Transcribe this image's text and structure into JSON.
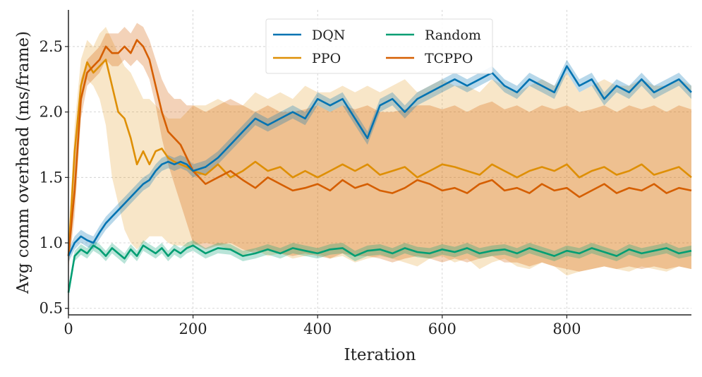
{
  "chart_data": {
    "type": "line",
    "title": "",
    "xlabel": "Iteration",
    "ylabel": "Avg comm overhead (ms/frame)",
    "xlim": [
      0,
      1000
    ],
    "ylim": [
      0.45,
      2.78
    ],
    "xticks": [
      0,
      200,
      400,
      600,
      800
    ],
    "xtick_labels": [
      "0",
      "200",
      "400",
      "600",
      "800"
    ],
    "yticks": [
      0.5,
      1.0,
      1.5,
      2.0,
      2.5
    ],
    "ytick_labels": [
      "0.5",
      "1.0",
      "1.5",
      "2.0",
      "2.5"
    ],
    "grid": true,
    "legend_position": "top-center",
    "legend_columns": 2,
    "x": [
      0,
      10,
      20,
      30,
      40,
      50,
      60,
      70,
      80,
      90,
      100,
      110,
      120,
      130,
      140,
      150,
      160,
      170,
      180,
      190,
      200,
      220,
      240,
      260,
      280,
      300,
      320,
      340,
      360,
      380,
      400,
      420,
      440,
      460,
      480,
      500,
      520,
      540,
      560,
      580,
      600,
      620,
      640,
      660,
      680,
      700,
      720,
      740,
      760,
      780,
      800,
      820,
      840,
      860,
      880,
      900,
      920,
      940,
      960,
      980,
      1000
    ],
    "series": [
      {
        "name": "DQN",
        "color": "#0173b2",
        "values": [
          0.9,
          1.0,
          1.05,
          1.02,
          1.0,
          1.08,
          1.15,
          1.2,
          1.25,
          1.3,
          1.35,
          1.4,
          1.45,
          1.48,
          1.55,
          1.6,
          1.62,
          1.6,
          1.62,
          1.6,
          1.55,
          1.58,
          1.65,
          1.75,
          1.85,
          1.95,
          1.9,
          1.95,
          2.0,
          1.95,
          2.1,
          2.05,
          2.1,
          1.95,
          1.8,
          2.05,
          2.1,
          2.0,
          2.1,
          2.15,
          2.2,
          2.25,
          2.2,
          2.25,
          2.3,
          2.2,
          2.15,
          2.25,
          2.2,
          2.15,
          2.35,
          2.2,
          2.25,
          2.1,
          2.2,
          2.15,
          2.25,
          2.15,
          2.2,
          2.25,
          2.15
        ],
        "band_low": [
          0.85,
          0.95,
          1.0,
          0.97,
          0.95,
          1.03,
          1.1,
          1.15,
          1.2,
          1.25,
          1.3,
          1.35,
          1.4,
          1.43,
          1.5,
          1.55,
          1.57,
          1.55,
          1.57,
          1.55,
          1.5,
          1.53,
          1.6,
          1.7,
          1.8,
          1.9,
          1.85,
          1.9,
          1.95,
          1.9,
          2.05,
          2.0,
          2.05,
          1.9,
          1.75,
          2.0,
          2.05,
          1.95,
          2.05,
          2.1,
          2.15,
          2.2,
          2.15,
          2.2,
          2.25,
          2.15,
          2.1,
          2.2,
          2.15,
          2.1,
          2.3,
          2.15,
          2.2,
          2.05,
          2.15,
          2.1,
          2.2,
          2.1,
          2.15,
          2.2,
          2.1
        ],
        "band_high": [
          0.95,
          1.05,
          1.1,
          1.07,
          1.05,
          1.13,
          1.2,
          1.25,
          1.3,
          1.35,
          1.4,
          1.45,
          1.5,
          1.53,
          1.6,
          1.65,
          1.67,
          1.65,
          1.67,
          1.65,
          1.6,
          1.63,
          1.7,
          1.8,
          1.9,
          2.0,
          1.95,
          2.0,
          2.05,
          2.0,
          2.15,
          2.1,
          2.15,
          2.0,
          1.85,
          2.1,
          2.15,
          2.05,
          2.15,
          2.2,
          2.25,
          2.3,
          2.25,
          2.3,
          2.35,
          2.25,
          2.2,
          2.3,
          2.25,
          2.2,
          2.4,
          2.25,
          2.3,
          2.15,
          2.25,
          2.2,
          2.3,
          2.2,
          2.25,
          2.3,
          2.2
        ]
      },
      {
        "name": "PPO",
        "color": "#de8f05",
        "values": [
          0.9,
          1.7,
          2.2,
          2.38,
          2.3,
          2.35,
          2.4,
          2.2,
          2.0,
          1.95,
          1.8,
          1.6,
          1.7,
          1.6,
          1.7,
          1.72,
          1.65,
          1.62,
          1.6,
          1.58,
          1.55,
          1.52,
          1.6,
          1.5,
          1.55,
          1.62,
          1.55,
          1.58,
          1.5,
          1.55,
          1.5,
          1.55,
          1.6,
          1.55,
          1.6,
          1.52,
          1.55,
          1.58,
          1.5,
          1.55,
          1.6,
          1.58,
          1.55,
          1.52,
          1.6,
          1.55,
          1.5,
          1.55,
          1.58,
          1.55,
          1.6,
          1.5,
          1.55,
          1.58,
          1.52,
          1.55,
          1.6,
          1.52,
          1.55,
          1.58,
          1.5
        ],
        "band_low": [
          0.8,
          1.5,
          2.05,
          2.25,
          2.2,
          2.1,
          1.9,
          1.5,
          1.3,
          1.1,
          1.0,
          0.95,
          1.0,
          1.05,
          1.05,
          1.05,
          1.0,
          0.98,
          0.98,
          0.97,
          0.98,
          1.0,
          0.98,
          0.95,
          0.9,
          0.95,
          0.9,
          0.92,
          0.88,
          0.9,
          0.92,
          0.88,
          0.9,
          0.85,
          0.88,
          0.9,
          0.88,
          0.85,
          0.82,
          0.88,
          0.9,
          0.85,
          0.88,
          0.8,
          0.85,
          0.88,
          0.82,
          0.8,
          0.85,
          0.82,
          0.75,
          0.78,
          0.8,
          0.82,
          0.8,
          0.78,
          0.82,
          0.8,
          0.78,
          0.82,
          0.8
        ],
        "band_high": [
          1.0,
          1.9,
          2.4,
          2.55,
          2.5,
          2.6,
          2.65,
          2.55,
          2.45,
          2.35,
          2.3,
          2.2,
          2.1,
          2.1,
          2.05,
          2.0,
          1.95,
          1.95,
          1.95,
          2.0,
          2.05,
          2.05,
          2.1,
          2.05,
          2.05,
          2.15,
          2.1,
          2.15,
          2.1,
          2.2,
          2.15,
          2.15,
          2.2,
          2.15,
          2.2,
          2.15,
          2.2,
          2.25,
          2.15,
          2.2,
          2.25,
          2.2,
          2.2,
          2.15,
          2.25,
          2.2,
          2.15,
          2.2,
          2.25,
          2.2,
          2.3,
          2.15,
          2.2,
          2.25,
          2.2,
          2.2,
          2.25,
          2.2,
          2.2,
          2.25,
          2.2
        ]
      },
      {
        "name": "Random",
        "color": "#029e73",
        "values": [
          0.62,
          0.9,
          0.95,
          0.92,
          0.98,
          0.95,
          0.9,
          0.96,
          0.92,
          0.88,
          0.95,
          0.9,
          0.98,
          0.95,
          0.92,
          0.96,
          0.9,
          0.95,
          0.92,
          0.96,
          0.98,
          0.92,
          0.96,
          0.95,
          0.9,
          0.92,
          0.95,
          0.92,
          0.96,
          0.94,
          0.92,
          0.95,
          0.96,
          0.9,
          0.94,
          0.95,
          0.92,
          0.96,
          0.93,
          0.92,
          0.95,
          0.93,
          0.96,
          0.92,
          0.94,
          0.95,
          0.92,
          0.96,
          0.93,
          0.9,
          0.94,
          0.92,
          0.96,
          0.93,
          0.9,
          0.95,
          0.92,
          0.94,
          0.96,
          0.92,
          0.94
        ],
        "band_low": [
          0.58,
          0.86,
          0.91,
          0.88,
          0.94,
          0.91,
          0.86,
          0.92,
          0.88,
          0.84,
          0.91,
          0.86,
          0.94,
          0.91,
          0.88,
          0.92,
          0.86,
          0.91,
          0.88,
          0.92,
          0.94,
          0.88,
          0.92,
          0.91,
          0.86,
          0.88,
          0.91,
          0.88,
          0.92,
          0.9,
          0.88,
          0.91,
          0.92,
          0.86,
          0.9,
          0.91,
          0.88,
          0.92,
          0.89,
          0.88,
          0.91,
          0.89,
          0.92,
          0.88,
          0.9,
          0.91,
          0.88,
          0.92,
          0.89,
          0.86,
          0.9,
          0.88,
          0.92,
          0.89,
          0.86,
          0.91,
          0.88,
          0.9,
          0.92,
          0.88,
          0.9
        ],
        "band_high": [
          0.66,
          0.94,
          0.99,
          0.96,
          1.02,
          0.99,
          0.94,
          1.0,
          0.96,
          0.92,
          0.99,
          0.94,
          1.02,
          0.99,
          0.96,
          1.0,
          0.94,
          0.99,
          0.96,
          1.0,
          1.02,
          0.96,
          1.0,
          0.99,
          0.94,
          0.96,
          0.99,
          0.96,
          1.0,
          0.98,
          0.96,
          0.99,
          1.0,
          0.94,
          0.98,
          0.99,
          0.96,
          1.0,
          0.97,
          0.96,
          0.99,
          0.97,
          1.0,
          0.96,
          0.98,
          0.99,
          0.96,
          1.0,
          0.97,
          0.94,
          0.98,
          0.96,
          1.0,
          0.97,
          0.94,
          0.99,
          0.96,
          0.98,
          1.0,
          0.96,
          0.98
        ]
      },
      {
        "name": "TCPPO",
        "color": "#d55e00",
        "values": [
          0.9,
          1.4,
          2.1,
          2.3,
          2.35,
          2.4,
          2.5,
          2.45,
          2.45,
          2.5,
          2.45,
          2.55,
          2.5,
          2.4,
          2.2,
          2.0,
          1.85,
          1.8,
          1.75,
          1.65,
          1.55,
          1.45,
          1.5,
          1.55,
          1.48,
          1.42,
          1.5,
          1.45,
          1.4,
          1.42,
          1.45,
          1.4,
          1.48,
          1.42,
          1.45,
          1.4,
          1.38,
          1.42,
          1.48,
          1.45,
          1.4,
          1.42,
          1.38,
          1.45,
          1.48,
          1.4,
          1.42,
          1.38,
          1.45,
          1.4,
          1.42,
          1.35,
          1.4,
          1.45,
          1.38,
          1.42,
          1.4,
          1.45,
          1.38,
          1.42,
          1.4
        ],
        "band_low": [
          0.8,
          1.2,
          1.95,
          2.2,
          2.25,
          2.3,
          2.4,
          2.35,
          2.35,
          2.4,
          2.35,
          2.4,
          2.35,
          2.25,
          2.05,
          1.8,
          1.6,
          1.45,
          1.3,
          1.15,
          1.0,
          0.95,
          0.98,
          1.0,
          0.95,
          0.92,
          0.95,
          0.92,
          0.9,
          0.92,
          0.9,
          0.88,
          0.92,
          0.9,
          0.9,
          0.88,
          0.85,
          0.88,
          0.9,
          0.88,
          0.85,
          0.88,
          0.85,
          0.88,
          0.9,
          0.85,
          0.85,
          0.82,
          0.85,
          0.82,
          0.8,
          0.78,
          0.8,
          0.82,
          0.8,
          0.82,
          0.8,
          0.82,
          0.8,
          0.82,
          0.8
        ],
        "band_high": [
          1.0,
          1.6,
          2.25,
          2.4,
          2.45,
          2.5,
          2.6,
          2.6,
          2.6,
          2.65,
          2.6,
          2.68,
          2.65,
          2.55,
          2.4,
          2.25,
          2.15,
          2.1,
          2.1,
          2.05,
          2.05,
          2.0,
          2.05,
          2.1,
          2.05,
          2.0,
          2.05,
          2.0,
          2.0,
          2.02,
          2.05,
          2.0,
          2.05,
          2.02,
          2.05,
          2.0,
          2.0,
          2.02,
          2.05,
          2.05,
          2.02,
          2.05,
          2.0,
          2.05,
          2.08,
          2.02,
          2.05,
          2.0,
          2.05,
          2.02,
          2.05,
          2.0,
          2.02,
          2.05,
          2.0,
          2.05,
          2.02,
          2.05,
          2.0,
          2.05,
          2.02
        ]
      }
    ],
    "legend_order": [
      "DQN",
      "Random",
      "PPO",
      "TCPPO"
    ]
  }
}
